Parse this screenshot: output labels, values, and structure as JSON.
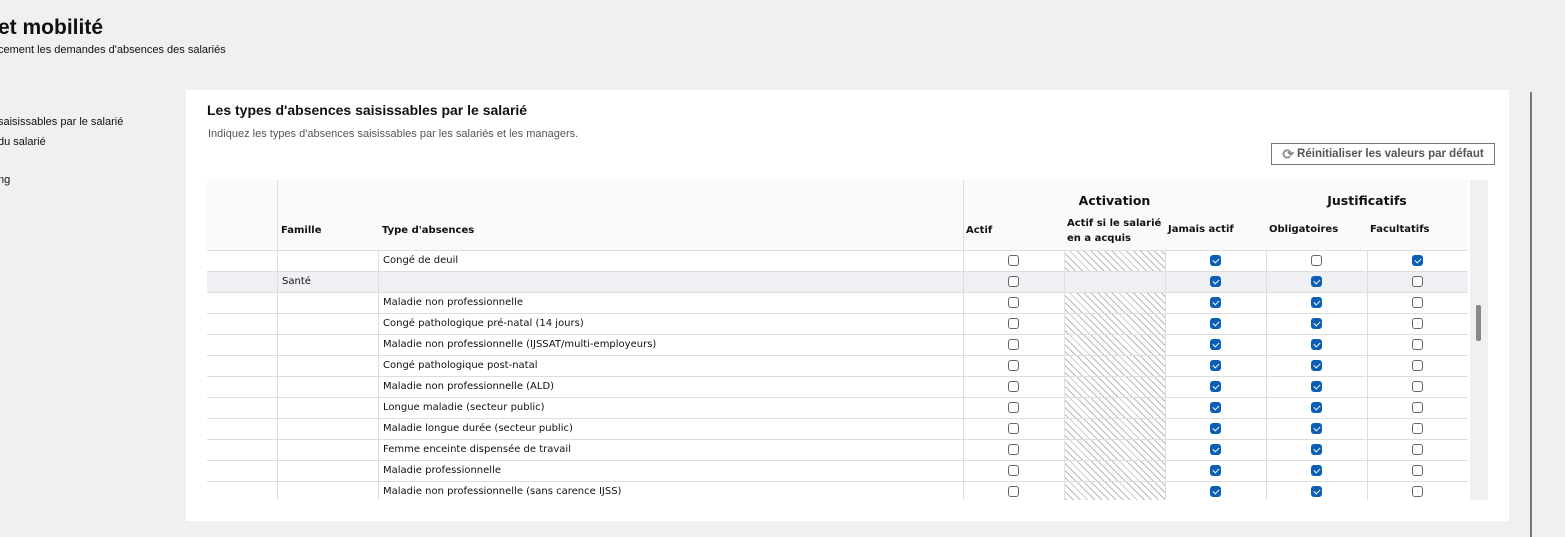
{
  "header": {
    "title": "et mobilité",
    "subtitle": "cement les demandes d'absences des salariés"
  },
  "nav": [
    "saisissables par le salarié",
    "du salarié",
    "ng"
  ],
  "panel": {
    "title": "Les types d'absences saisissables par le salarié",
    "description": "Indiquez les types d'absences saisissables par les salariés et les managers.",
    "reset_label": "Réinitialiser les valeurs par défaut",
    "reset_icon": "refresh-icon"
  },
  "table": {
    "groups": {
      "activation": "Activation",
      "justificatifs": "Justificatifs"
    },
    "columns": {
      "famille": "Famille",
      "type": "Type d'absences",
      "actif": "Actif",
      "acquis": "Actif si le salarié en a acquis",
      "jamais": "Jamais actif",
      "obligatoires": "Obligatoires",
      "facultatifs": "Facultatifs"
    },
    "rows": [
      {
        "famille": "",
        "type": "Congé de deuil",
        "actif": false,
        "acquis": null,
        "jamais": true,
        "obligatoires": false,
        "facultatifs": true
      },
      {
        "famille": "Santé",
        "type": "",
        "actif": false,
        "acquis": "blank",
        "jamais": true,
        "obligatoires": true,
        "facultatifs": false
      },
      {
        "famille": "",
        "type": "Maladie non professionnelle",
        "actif": false,
        "acquis": null,
        "jamais": true,
        "obligatoires": true,
        "facultatifs": false
      },
      {
        "famille": "",
        "type": "Congé pathologique pré-natal (14 jours)",
        "actif": false,
        "acquis": null,
        "jamais": true,
        "obligatoires": true,
        "facultatifs": false
      },
      {
        "famille": "",
        "type": "Maladie non professionnelle (IJSSAT/multi-employeurs)",
        "actif": false,
        "acquis": null,
        "jamais": true,
        "obligatoires": true,
        "facultatifs": false
      },
      {
        "famille": "",
        "type": "Congé pathologique post-natal",
        "actif": false,
        "acquis": null,
        "jamais": true,
        "obligatoires": true,
        "facultatifs": false
      },
      {
        "famille": "",
        "type": "Maladie non professionnelle (ALD)",
        "actif": false,
        "acquis": null,
        "jamais": true,
        "obligatoires": true,
        "facultatifs": false
      },
      {
        "famille": "",
        "type": "Longue maladie (secteur public)",
        "actif": false,
        "acquis": null,
        "jamais": true,
        "obligatoires": true,
        "facultatifs": false
      },
      {
        "famille": "",
        "type": "Maladie longue durée (secteur public)",
        "actif": false,
        "acquis": null,
        "jamais": true,
        "obligatoires": true,
        "facultatifs": false
      },
      {
        "famille": "",
        "type": "Femme enceinte dispensée de travail",
        "actif": false,
        "acquis": null,
        "jamais": true,
        "obligatoires": true,
        "facultatifs": false
      },
      {
        "famille": "",
        "type": "Maladie professionnelle",
        "actif": false,
        "acquis": null,
        "jamais": true,
        "obligatoires": true,
        "facultatifs": false
      },
      {
        "famille": "",
        "type": "Maladie non professionnelle (sans carence IJSS)",
        "actif": false,
        "acquis": null,
        "jamais": true,
        "obligatoires": true,
        "facultatifs": false
      }
    ]
  },
  "colors": {
    "accent": "#0a5fb4"
  }
}
